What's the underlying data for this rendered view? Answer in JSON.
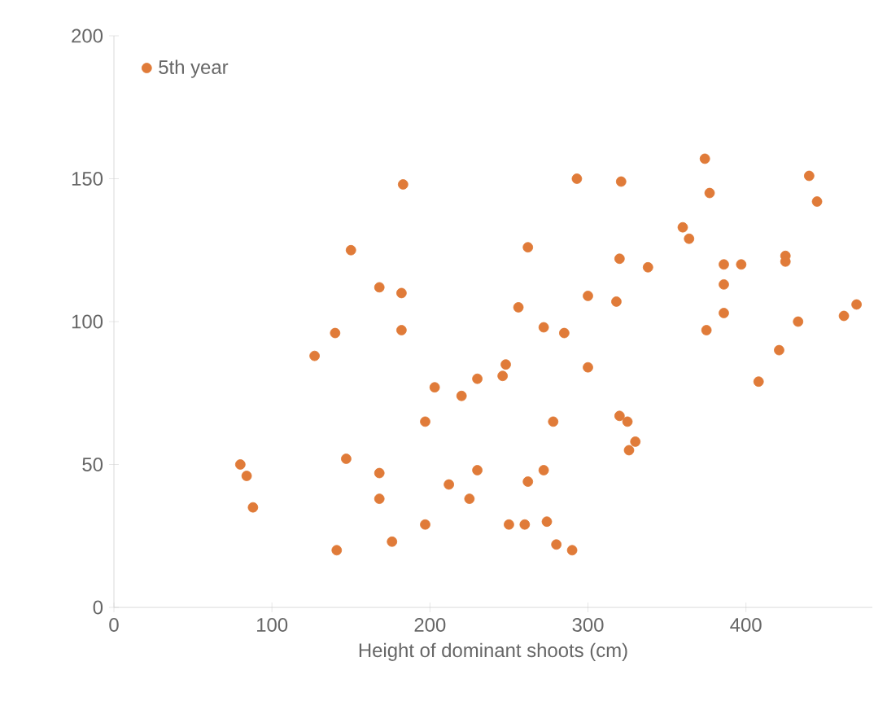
{
  "chart_data": {
    "type": "scatter",
    "xlabel": "Height of dominant shoots (cm)",
    "xlim": [
      0,
      480
    ],
    "xticks": [
      0,
      100,
      200,
      300,
      400
    ],
    "ylim": [
      0,
      200
    ],
    "yticks": [
      0,
      50,
      100,
      150,
      200
    ],
    "grid": false,
    "legend": "top left",
    "marker": "circle",
    "series": [
      {
        "name": "5th year",
        "color": "#e07b39",
        "x": [
          80,
          84,
          88,
          127,
          140,
          147,
          150,
          141,
          168,
          168,
          168,
          176,
          183,
          182,
          182,
          197,
          197,
          203,
          212,
          220,
          225,
          230,
          230,
          246,
          248,
          250,
          256,
          260,
          262,
          262,
          272,
          272,
          274,
          280,
          278,
          285,
          290,
          293,
          300,
          300,
          318,
          320,
          321,
          320,
          325,
          326,
          330,
          338,
          360,
          364,
          374,
          375,
          377,
          386,
          386,
          386,
          397,
          408,
          421,
          425,
          425,
          433,
          440,
          445,
          462,
          470
        ],
        "values": [
          50,
          46,
          35,
          88,
          96,
          52,
          125,
          20,
          112,
          47,
          38,
          23,
          148,
          110,
          97,
          65,
          29,
          77,
          43,
          74,
          38,
          80,
          48,
          81,
          85,
          29,
          105,
          29,
          126,
          44,
          98,
          48,
          30,
          22,
          65,
          96,
          20,
          150,
          109,
          84,
          107,
          122,
          149,
          67,
          65,
          55,
          58,
          119,
          133,
          129,
          157,
          97,
          145,
          120,
          113,
          103,
          120,
          79,
          90,
          123,
          121,
          100,
          151,
          142,
          102,
          106
        ]
      }
    ]
  }
}
